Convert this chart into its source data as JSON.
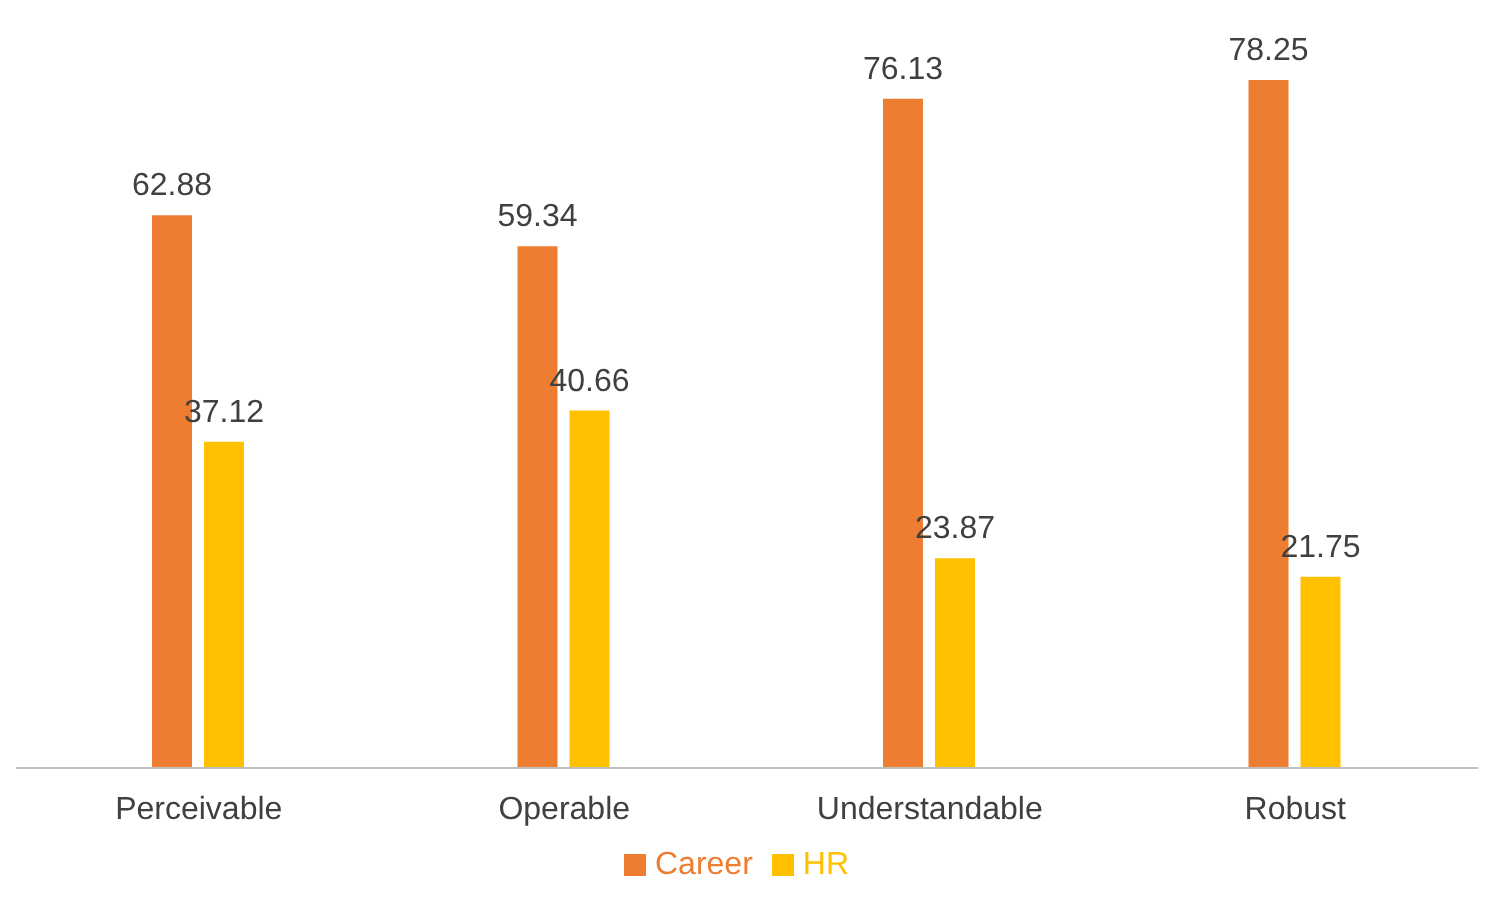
{
  "chart_data": {
    "type": "bar",
    "categories": [
      "Perceivable",
      "Operable",
      "Understandable",
      "Robust"
    ],
    "series": [
      {
        "name": "Career",
        "color": "#ed7d31",
        "values": [
          62.88,
          59.34,
          76.13,
          78.25
        ]
      },
      {
        "name": "HR",
        "color": "#ffc000",
        "values": [
          37.12,
          40.66,
          23.87,
          21.75
        ]
      }
    ],
    "data_labels": true,
    "legend": "bottom"
  }
}
